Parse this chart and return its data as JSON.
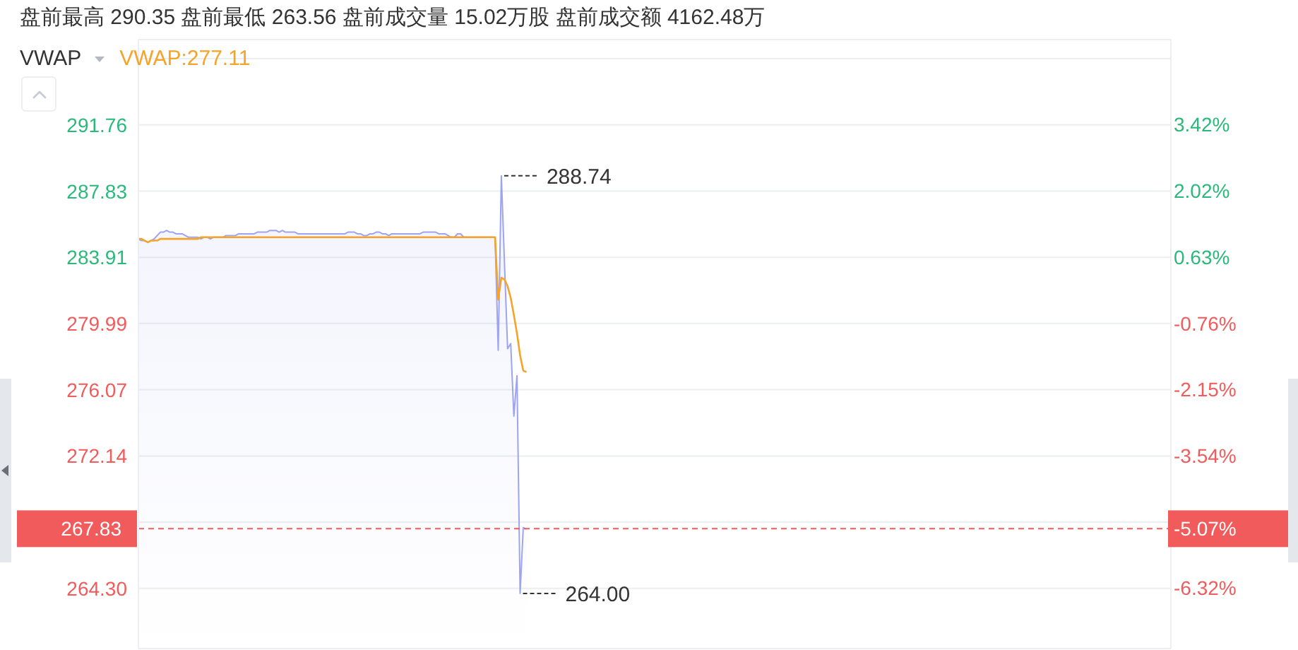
{
  "chart_data": {
    "type": "line",
    "title": "盘前最高 290.35 盘前最低 263.56 盘前成交量 15.02万股 盘前成交额 4162.48万",
    "legend_title": "VWAP",
    "categories": [
      null,
      null,
      null,
      null,
      null,
      null,
      null,
      null,
      null,
      null,
      null,
      null,
      null,
      null,
      null,
      null,
      null,
      null,
      null,
      null,
      null,
      null,
      null,
      null,
      null,
      null,
      null,
      null,
      null,
      null,
      null,
      null,
      null,
      null,
      null,
      null,
      null,
      null,
      null,
      null,
      null,
      null,
      null,
      null,
      null,
      null,
      null,
      null,
      null,
      null,
      null,
      null,
      null,
      null,
      null,
      null,
      null,
      null,
      null,
      null,
      null,
      null,
      null,
      null,
      null,
      null,
      null,
      null,
      null,
      null,
      null,
      null,
      null,
      null,
      null,
      null,
      null,
      null,
      null,
      null,
      null,
      null,
      null,
      null,
      null,
      null,
      null,
      null,
      null,
      null,
      null,
      null,
      null,
      null,
      null,
      null,
      null,
      null,
      null,
      null,
      null,
      null,
      null,
      null,
      null,
      null,
      null,
      null,
      null,
      null,
      null,
      null,
      null,
      null,
      null,
      null,
      null,
      null,
      null,
      null,
      null,
      null,
      null,
      null,
      null,
      null,
      null,
      null,
      null,
      null,
      null,
      null,
      null,
      null,
      null,
      null,
      null,
      null,
      null,
      null,
      null,
      null,
      null,
      null,
      null,
      null,
      null,
      null,
      null,
      null,
      null,
      null,
      null,
      null,
      null,
      null,
      null,
      null,
      null,
      null,
      null,
      null,
      null,
      null,
      null,
      null,
      null,
      null,
      null,
      null,
      null,
      null,
      null,
      null,
      null,
      null,
      null,
      null,
      null,
      null,
      null,
      null,
      null,
      null,
      null,
      null,
      null,
      null,
      null,
      null,
      null,
      null,
      null,
      null,
      null,
      null,
      null,
      null,
      null,
      null,
      null,
      null,
      null,
      null,
      null,
      null,
      null,
      null,
      null,
      null,
      null,
      null,
      null,
      null,
      null,
      null,
      null,
      null,
      null,
      null,
      null,
      null,
      null,
      null,
      null,
      null,
      null,
      null,
      null,
      null,
      null,
      null,
      null,
      null,
      null,
      null,
      null,
      null,
      null,
      null,
      null,
      null,
      null,
      null,
      null,
      null,
      null,
      null,
      null,
      null,
      null,
      null,
      null,
      null,
      null,
      null,
      null,
      null,
      null,
      null,
      null,
      null,
      null,
      null,
      null,
      null,
      null,
      null,
      null,
      null,
      null,
      null,
      null,
      null,
      null,
      null,
      null,
      null,
      null,
      null,
      null,
      null,
      null,
      null,
      null,
      null,
      null,
      null,
      null,
      null,
      null,
      null,
      null,
      null,
      null,
      null,
      null,
      null,
      null,
      null,
      null,
      null,
      null,
      null,
      null,
      null,
      null,
      null,
      null,
      null,
      null,
      null,
      null,
      null,
      null,
      null,
      null,
      null,
      null,
      null,
      null,
      null,
      null,
      null,
      null,
      null,
      null,
      null,
      null,
      null,
      null
    ],
    "ylim": [
      260.73,
      296.81
    ],
    "yticks": [
      {
        "value": 295.68,
        "label": null
      },
      291.76,
      287.83,
      283.91,
      279.99,
      276.07,
      272.14,
      {
        "value": 268.22,
        "label": null
      },
      {
        "value": 264.3,
        "label": "264.30"
      }
    ],
    "y2lim": [
      -7.59,
      5.2
    ],
    "y2ticks": [
      {
        "value": 3.42,
        "label": "3.42%"
      },
      {
        "value": 2.02,
        "label": "2.02%"
      },
      {
        "value": 0.63,
        "label": "0.63%"
      },
      {
        "value": -0.76,
        "label": "-0.76%"
      },
      {
        "value": -2.15,
        "label": "-2.15%"
      },
      {
        "value": -3.54,
        "label": "-3.54%"
      },
      {
        "value": -6.32,
        "label": "-6.32%"
      }
    ],
    "tick_labels": "y",
    "grid": "y",
    "legend": "top left",
    "series": [
      {
        "type": "area",
        "color": "#9da4f0",
        "values": [
          285.0,
          284.9,
          284.9,
          284.8,
          284.9,
          285.0,
          285.2,
          285.4,
          285.4,
          285.5,
          285.4,
          285.4,
          285.3,
          285.3,
          285.3,
          285.2,
          285.1,
          285.1,
          285.1,
          285.1,
          285.0,
          285.1,
          285.1,
          285.0,
          285.1,
          285.1,
          285.1,
          285.1,
          285.2,
          285.2,
          285.2,
          285.2,
          285.3,
          285.3,
          285.3,
          285.3,
          285.3,
          285.3,
          285.4,
          285.4,
          285.4,
          285.4,
          285.5,
          285.5,
          285.5,
          285.4,
          285.5,
          285.4,
          285.4,
          285.4,
          285.4,
          285.3,
          285.3,
          285.3,
          285.3,
          285.3,
          285.3,
          285.3,
          285.3,
          285.3,
          285.3,
          285.3,
          285.3,
          285.3,
          285.3,
          285.3,
          285.3,
          285.4,
          285.4,
          285.4,
          285.3,
          285.3,
          285.2,
          285.2,
          285.3,
          285.3,
          285.4,
          285.4,
          285.3,
          285.3,
          285.2,
          285.3,
          285.3,
          285.3,
          285.3,
          285.3,
          285.3,
          285.3,
          285.3,
          285.3,
          285.3,
          285.4,
          285.4,
          285.4,
          285.4,
          285.4,
          285.3,
          285.3,
          285.3,
          285.2,
          285.1,
          285.1,
          285.3,
          285.3,
          285.1,
          285.1,
          285.1,
          285.1,
          285.1,
          285.1,
          285.1,
          285.1,
          285.1,
          285.1,
          285.1,
          278.4,
          288.74,
          283.6,
          278.5,
          278.8,
          274.5,
          276.9,
          264.0,
          267.9,
          267.8,
          null,
          null,
          null,
          null,
          null,
          null,
          null,
          null,
          null,
          null,
          null,
          null,
          null,
          null,
          null,
          null,
          null,
          null,
          null,
          null,
          null,
          null,
          null,
          null,
          null,
          null,
          null,
          null,
          null,
          null,
          null,
          null,
          null,
          null,
          null,
          null,
          null,
          null,
          null,
          null,
          null,
          null,
          null,
          null,
          null,
          null,
          null,
          null,
          null,
          null,
          null,
          null,
          null,
          null,
          null,
          null,
          null,
          null,
          null,
          null,
          null,
          null,
          null,
          null,
          null,
          null,
          null,
          null,
          null,
          null,
          null,
          null,
          null,
          null,
          null,
          null,
          null,
          null,
          null,
          null,
          null,
          null,
          null,
          null,
          null,
          null,
          null,
          null,
          null,
          null,
          null,
          null,
          null,
          null,
          null,
          null,
          null,
          null,
          null,
          null,
          null,
          null,
          null,
          null,
          null,
          null,
          null,
          null,
          null,
          null,
          null,
          null,
          null,
          null,
          null,
          null,
          null,
          null,
          null,
          null,
          null,
          null,
          null,
          null,
          null,
          null,
          null,
          null,
          null,
          null,
          null,
          null,
          null,
          null,
          null,
          null,
          null,
          null,
          null,
          null,
          null,
          null,
          null,
          null,
          null,
          null,
          null,
          null,
          null,
          null,
          null,
          null,
          null,
          null,
          null,
          null,
          null,
          null,
          null,
          null,
          null,
          null,
          null,
          null,
          null,
          null,
          null,
          null,
          null,
          null,
          null,
          null,
          null,
          null,
          null,
          null,
          null,
          null,
          null,
          null,
          null,
          null,
          null,
          null,
          null,
          null,
          null,
          null,
          null,
          null,
          null,
          null,
          null,
          null,
          null,
          null,
          null,
          null,
          null,
          null,
          null,
          null,
          null,
          null,
          null,
          null
        ]
      },
      {
        "name": "VWAP:277.11",
        "color": "#f6a32a",
        "values": [
          285.0,
          285.0,
          284.9,
          284.8,
          284.9,
          284.9,
          284.9,
          285.0,
          285.0,
          285.0,
          285.0,
          285.0,
          285.0,
          285.0,
          285.0,
          285.0,
          285.0,
          285.0,
          285.0,
          285.0,
          285.1,
          285.1,
          285.1,
          285.1,
          285.1,
          285.1,
          285.1,
          285.1,
          285.1,
          285.1,
          285.1,
          285.1,
          285.1,
          285.1,
          285.1,
          285.1,
          285.1,
          285.1,
          285.1,
          285.1,
          285.1,
          285.1,
          285.1,
          285.1,
          285.1,
          285.1,
          285.1,
          285.1,
          285.1,
          285.1,
          285.1,
          285.1,
          285.1,
          285.1,
          285.1,
          285.1,
          285.1,
          285.1,
          285.1,
          285.1,
          285.1,
          285.1,
          285.1,
          285.1,
          285.1,
          285.1,
          285.1,
          285.1,
          285.1,
          285.1,
          285.1,
          285.1,
          285.1,
          285.1,
          285.1,
          285.1,
          285.1,
          285.1,
          285.1,
          285.1,
          285.1,
          285.1,
          285.1,
          285.1,
          285.1,
          285.1,
          285.1,
          285.1,
          285.1,
          285.1,
          285.1,
          285.1,
          285.1,
          285.1,
          285.1,
          285.1,
          285.1,
          285.1,
          285.1,
          285.1,
          285.1,
          285.1,
          285.1,
          285.1,
          285.1,
          285.1,
          285.1,
          285.1,
          285.1,
          285.1,
          285.1,
          285.1,
          285.1,
          285.1,
          285.1,
          281.4,
          282.7,
          282.6,
          282.2,
          281.5,
          280.5,
          279.4,
          278.1,
          277.2,
          277.11,
          null,
          null,
          null,
          null,
          null,
          null,
          null,
          null,
          null,
          null,
          null,
          null,
          null,
          null,
          null,
          null,
          null,
          null,
          null,
          null,
          null,
          null,
          null,
          null,
          null,
          null,
          null,
          null,
          null,
          null,
          null,
          null,
          null,
          null,
          null,
          null,
          null,
          null,
          null,
          null,
          null,
          null,
          null,
          null,
          null,
          null,
          null,
          null,
          null,
          null,
          null,
          null,
          null,
          null,
          null,
          null,
          null,
          null,
          null,
          null,
          null,
          null,
          null,
          null,
          null,
          null,
          null,
          null,
          null,
          null,
          null,
          null,
          null,
          null,
          null,
          null,
          null,
          null,
          null,
          null,
          null,
          null,
          null,
          null,
          null,
          null,
          null,
          null,
          null,
          null,
          null,
          null,
          null,
          null,
          null,
          null,
          null,
          null,
          null,
          null,
          null,
          null,
          null,
          null,
          null,
          null,
          null,
          null,
          null,
          null,
          null,
          null,
          null,
          null,
          null,
          null,
          null,
          null,
          null,
          null,
          null,
          null,
          null,
          null,
          null,
          null,
          null,
          null,
          null,
          null,
          null,
          null,
          null,
          null,
          null,
          null,
          null,
          null,
          null,
          null,
          null,
          null,
          null,
          null,
          null,
          null,
          null,
          null,
          null,
          null,
          null,
          null,
          null,
          null,
          null,
          null,
          null,
          null,
          null,
          null,
          null,
          null,
          null,
          null,
          null,
          null,
          null,
          null,
          null,
          null,
          null,
          null,
          null,
          null,
          null,
          null,
          null,
          null,
          null,
          null,
          null,
          null,
          null,
          null,
          null,
          null,
          null,
          null,
          null,
          null,
          null,
          null,
          null,
          null,
          null,
          null,
          null,
          null,
          null,
          null,
          null,
          null,
          null,
          null,
          null,
          null
        ]
      }
    ],
    "ref_lines": [
      {
        "axis": "y",
        "value": 267.83,
        "label": "267.83",
        "color": "#f15b5b",
        "line_style": "dashed"
      }
    ],
    "annotations": [
      "288.74",
      "264.00",
      "-5.07%"
    ]
  }
}
